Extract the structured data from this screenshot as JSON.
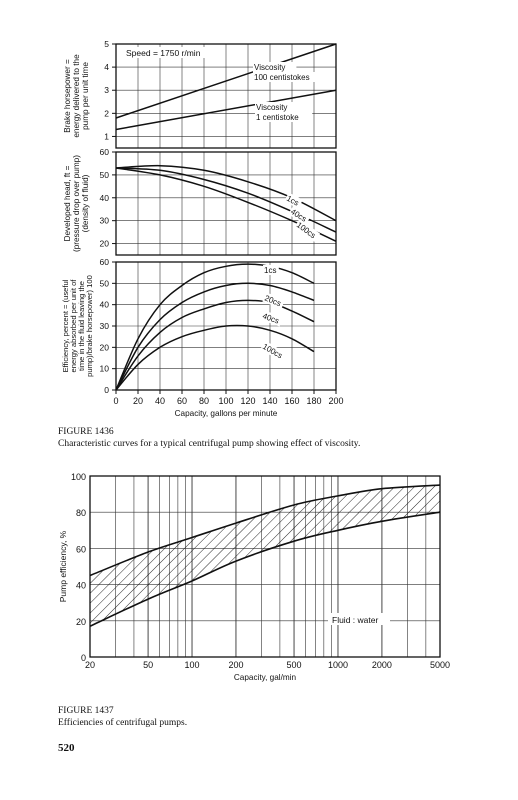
{
  "figure1": {
    "caption_label": "FIGURE 1436",
    "caption_text": "Characteristic curves for a typical centrifugal pump showing effect of viscosity.",
    "xlabel": "Capacity, gallons per minute",
    "x_ticks": [
      "0",
      "20",
      "40",
      "60",
      "80",
      "100",
      "120",
      "140",
      "160",
      "180",
      "200"
    ],
    "speed_label": "Speed = 1750 r/min",
    "panels": [
      {
        "ylabel": [
          "Brake horsepower =",
          "energy delivered to the",
          "pump per unit time"
        ],
        "y_ticks": [
          "1",
          "2",
          "3",
          "4",
          "5"
        ],
        "annotations": [
          "Viscosity",
          "100 centistokes",
          "Viscosity",
          "1 centistoke"
        ]
      },
      {
        "ylabel": [
          "Developed head, ft =",
          "(pressure drop over pump)",
          "(density of fluid)"
        ],
        "y_ticks": [
          "20",
          "30",
          "40",
          "50",
          "60"
        ],
        "annotations": [
          "1cs",
          "40cs",
          "100cs"
        ]
      },
      {
        "ylabel": [
          "Efficiency, percent = (useful",
          "energy absorbed per unit of",
          "time in the fluid leaving the",
          "pump)/brake horsepower) 100"
        ],
        "y_ticks": [
          "0",
          "10",
          "20",
          "30",
          "40",
          "50",
          "60"
        ],
        "annotations": [
          "1cs",
          "20cs",
          "40cs",
          "100cs"
        ]
      }
    ]
  },
  "figure2": {
    "caption_label": "FIGURE 1437",
    "caption_text": "Efficiencies of centrifugal pumps.",
    "ylabel": "Pump efficiency, %",
    "xlabel": "Capacity, gal/min",
    "y_ticks": [
      "0",
      "20",
      "40",
      "60",
      "80",
      "100"
    ],
    "x_ticks": [
      "20",
      "50",
      "100",
      "200",
      "500",
      "1000",
      "2000",
      "5000"
    ],
    "annotation": "Fluid : water"
  },
  "page_number": "520",
  "chart_data": [
    {
      "type": "line",
      "xlabel": "Capacity, gallons per minute",
      "ylabel": "Brake horsepower = energy delivered to the pump per unit time",
      "xlim": [
        0,
        200
      ],
      "ylim": [
        0.5,
        5
      ],
      "series": [
        {
          "name": "Viscosity 100 centistokes",
          "x": [
            0,
            200
          ],
          "y": [
            1.8,
            5.0
          ]
        },
        {
          "name": "Viscosity 1 centistoke",
          "x": [
            0,
            200
          ],
          "y": [
            1.3,
            3.0
          ]
        }
      ]
    },
    {
      "type": "line",
      "xlabel": "Capacity, gallons per minute",
      "ylabel": "Developed head, ft = (pressure drop over pump)/(density of fluid)",
      "xlim": [
        0,
        200
      ],
      "ylim": [
        15,
        60
      ],
      "series": [
        {
          "name": "1cs",
          "x": [
            0,
            40,
            80,
            120,
            160,
            200
          ],
          "y": [
            53,
            54,
            52,
            47,
            40,
            30
          ]
        },
        {
          "name": "40cs",
          "x": [
            0,
            40,
            80,
            120,
            160,
            200
          ],
          "y": [
            53,
            52,
            48,
            42,
            34,
            25
          ]
        },
        {
          "name": "100cs",
          "x": [
            0,
            40,
            80,
            120,
            160,
            200
          ],
          "y": [
            53,
            50,
            45,
            38,
            30,
            21
          ]
        }
      ]
    },
    {
      "type": "line",
      "xlabel": "Capacity, gallons per minute",
      "ylabel": "Efficiency, percent",
      "xlim": [
        0,
        200
      ],
      "ylim": [
        0,
        60
      ],
      "series": [
        {
          "name": "1cs",
          "x": [
            0,
            20,
            40,
            60,
            80,
            100,
            120,
            140,
            160,
            180
          ],
          "y": [
            0,
            24,
            40,
            49,
            55,
            58,
            59,
            58,
            55,
            50
          ]
        },
        {
          "name": "20cs",
          "x": [
            0,
            20,
            40,
            60,
            80,
            100,
            120,
            140,
            160,
            180
          ],
          "y": [
            0,
            20,
            33,
            41,
            46,
            49,
            50,
            49,
            46,
            42
          ]
        },
        {
          "name": "40cs",
          "x": [
            0,
            20,
            40,
            60,
            80,
            100,
            120,
            140,
            160,
            180
          ],
          "y": [
            0,
            16,
            27,
            34,
            38,
            41,
            42,
            41,
            37,
            32
          ]
        },
        {
          "name": "100cs",
          "x": [
            0,
            20,
            40,
            60,
            80,
            100,
            120,
            140,
            160,
            180
          ],
          "y": [
            0,
            12,
            20,
            25,
            28,
            30,
            30,
            28,
            24,
            18
          ]
        }
      ]
    },
    {
      "type": "area",
      "xscale": "log",
      "xlabel": "Capacity, gal/min",
      "ylabel": "Pump efficiency, %",
      "xlim": [
        20,
        5000
      ],
      "ylim": [
        0,
        100
      ],
      "series": [
        {
          "name": "upper",
          "x": [
            20,
            50,
            100,
            200,
            500,
            1000,
            2000,
            5000
          ],
          "y": [
            45,
            58,
            66,
            74,
            84,
            89,
            93,
            95
          ]
        },
        {
          "name": "lower",
          "x": [
            20,
            50,
            100,
            200,
            500,
            1000,
            2000,
            5000
          ],
          "y": [
            17,
            32,
            42,
            53,
            64,
            70,
            75,
            80
          ]
        }
      ]
    }
  ]
}
